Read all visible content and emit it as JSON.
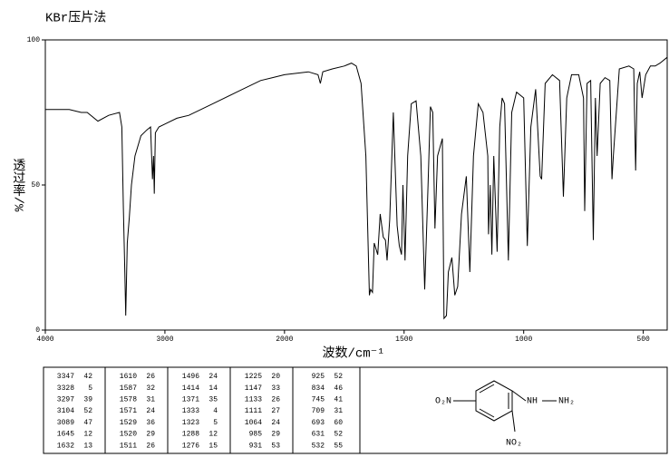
{
  "chart_data": {
    "type": "line",
    "title": "KBr压片法",
    "xlabel": "波数/cm⁻¹",
    "ylabel": "透过率/%",
    "xscale": "two-scale",
    "xbreak": 2000,
    "color": "#000000",
    "xlim": [
      4000,
      400
    ],
    "xticks": [
      4000,
      3000,
      2000,
      1500,
      1000,
      500
    ],
    "ylim": [
      0,
      100
    ],
    "yticks": [
      0,
      50,
      100
    ],
    "x": [
      4000,
      3900,
      3800,
      3700,
      3650,
      3560,
      3470,
      3380,
      3360,
      3347,
      3335,
      3328,
      3315,
      3297,
      3280,
      3250,
      3200,
      3150,
      3120,
      3104,
      3095,
      3089,
      3080,
      3050,
      3000,
      2900,
      2800,
      2600,
      2400,
      2200,
      2100,
      2000,
      1900,
      1860,
      1850,
      1840,
      1800,
      1750,
      1720,
      1700,
      1680,
      1660,
      1645,
      1640,
      1632,
      1625,
      1610,
      1600,
      1587,
      1578,
      1571,
      1560,
      1545,
      1529,
      1520,
      1511,
      1505,
      1496,
      1485,
      1470,
      1450,
      1430,
      1414,
      1400,
      1390,
      1380,
      1371,
      1360,
      1340,
      1333,
      1323,
      1315,
      1300,
      1288,
      1276,
      1260,
      1240,
      1225,
      1210,
      1190,
      1170,
      1150,
      1147,
      1140,
      1133,
      1125,
      1111,
      1100,
      1090,
      1080,
      1064,
      1050,
      1030,
      1000,
      985,
      970,
      950,
      931,
      925,
      910,
      880,
      850,
      834,
      820,
      800,
      770,
      750,
      745,
      735,
      720,
      709,
      700,
      693,
      680,
      660,
      640,
      631,
      625,
      600,
      560,
      540,
      532,
      525,
      515,
      505,
      490,
      470,
      450,
      430,
      400
    ],
    "values": [
      76,
      76,
      76,
      75,
      75,
      72,
      74,
      75,
      70,
      42,
      20,
      5,
      30,
      39,
      50,
      60,
      67,
      69,
      70,
      52,
      60,
      47,
      68,
      70,
      71,
      73,
      74,
      78,
      82,
      86,
      87,
      88,
      89,
      88,
      85,
      89,
      90,
      91,
      92,
      91,
      85,
      60,
      12,
      14,
      13,
      30,
      26,
      40,
      32,
      31,
      24,
      38,
      75,
      36,
      29,
      26,
      50,
      24,
      60,
      78,
      79,
      60,
      14,
      50,
      77,
      75,
      35,
      60,
      66,
      4,
      5,
      20,
      25,
      12,
      15,
      40,
      53,
      20,
      60,
      78,
      75,
      60,
      33,
      50,
      26,
      60,
      27,
      70,
      80,
      78,
      24,
      75,
      82,
      80,
      29,
      70,
      83,
      53,
      52,
      85,
      88,
      86,
      46,
      80,
      88,
      88,
      80,
      41,
      85,
      86,
      31,
      80,
      60,
      85,
      87,
      86,
      52,
      60,
      90,
      91,
      90,
      55,
      85,
      89,
      80,
      88,
      91,
      91,
      92,
      94
    ]
  },
  "peaks": [
    [
      [
        "3347",
        "42"
      ],
      [
        "3328",
        "5"
      ],
      [
        "3297",
        "39"
      ],
      [
        "3104",
        "52"
      ],
      [
        "3089",
        "47"
      ],
      [
        "1645",
        "12"
      ],
      [
        "1632",
        "13"
      ]
    ],
    [
      [
        "1610",
        "26"
      ],
      [
        "1587",
        "32"
      ],
      [
        "1578",
        "31"
      ],
      [
        "1571",
        "24"
      ],
      [
        "1529",
        "36"
      ],
      [
        "1520",
        "29"
      ],
      [
        "1511",
        "26"
      ]
    ],
    [
      [
        "1496",
        "24"
      ],
      [
        "1414",
        "14"
      ],
      [
        "1371",
        "35"
      ],
      [
        "1333",
        "4"
      ],
      [
        "1323",
        "5"
      ],
      [
        "1288",
        "12"
      ],
      [
        "1276",
        "15"
      ]
    ],
    [
      [
        "1225",
        "20"
      ],
      [
        "1147",
        "33"
      ],
      [
        "1133",
        "26"
      ],
      [
        "1111",
        "27"
      ],
      [
        "1064",
        "24"
      ],
      [
        "985",
        "29"
      ],
      [
        "931",
        "53"
      ]
    ],
    [
      [
        "925",
        "52"
      ],
      [
        "834",
        "46"
      ],
      [
        "745",
        "41"
      ],
      [
        "709",
        "31"
      ],
      [
        "693",
        "60"
      ],
      [
        "631",
        "52"
      ],
      [
        "532",
        "55"
      ]
    ]
  ],
  "structure": {
    "left": "O₂N",
    "nh": "NH",
    "nh2": "NH₂",
    "bottom": "NO₂"
  }
}
